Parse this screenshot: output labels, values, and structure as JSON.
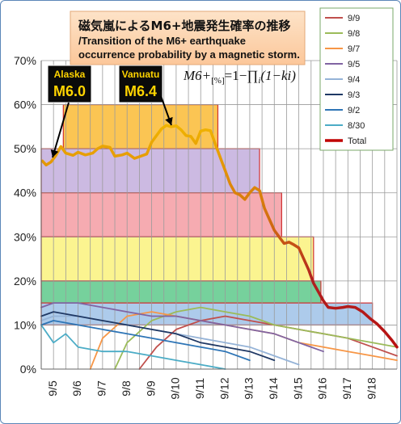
{
  "chart_data": {
    "type": "line",
    "title": "磁気嵐によるM6+地震発生確率の推移",
    "subtitle": "/Transition of the M6+ earthquake occurrence probability by a magnetic storm.",
    "formula": {
      "lhs": "M6+",
      "unit": "[%]",
      "rhs": "=1−∏",
      "sub": "i",
      "tail": "(1−ki)"
    },
    "ylim": [
      0,
      70
    ],
    "yticks": [
      "0%",
      "10%",
      "20%",
      "30%",
      "40%",
      "50%",
      "60%",
      "70%"
    ],
    "xlim": [
      4.5,
      19
    ],
    "xticks": [
      {
        "x": 5,
        "label": "9/5"
      },
      {
        "x": 6,
        "label": "9/6"
      },
      {
        "x": 7,
        "label": "9/7"
      },
      {
        "x": 8,
        "label": "9/8"
      },
      {
        "x": 9,
        "label": "9/9"
      },
      {
        "x": 10,
        "label": "9/10"
      },
      {
        "x": 11,
        "label": "9/11"
      },
      {
        "x": 12,
        "label": "9/12"
      },
      {
        "x": 13,
        "label": "9/13"
      },
      {
        "x": 14,
        "label": "9/14"
      },
      {
        "x": 15,
        "label": "9/15"
      },
      {
        "x": 16,
        "label": "9/16"
      },
      {
        "x": 17,
        "label": "9/17"
      },
      {
        "x": 18,
        "label": "9/18"
      }
    ],
    "grid": true,
    "legend_position": "top-right",
    "bands": [
      {
        "x0": 5.4,
        "x1": 11.7,
        "y0": 50,
        "y1": 60,
        "color": "#fbc24a"
      },
      {
        "x0": 4.5,
        "x1": 13.4,
        "y0": 40,
        "y1": 50,
        "color": "#c9b6e0"
      },
      {
        "x0": 4.5,
        "x1": 14.3,
        "y0": 30,
        "y1": 40,
        "color": "#f6a7ad"
      },
      {
        "x0": 4.5,
        "x1": 15.6,
        "y0": 20,
        "y1": 30,
        "color": "#fbf38a"
      },
      {
        "x0": 4.5,
        "x1": 15.9,
        "y0": 15,
        "y1": 20,
        "color": "#6fcf97"
      },
      {
        "x0": 4.5,
        "x1": 18.0,
        "y0": 10,
        "y1": 15,
        "color": "#a9c8ea"
      }
    ],
    "series": [
      {
        "name": "9/9",
        "color": "#c0504d",
        "x": [
          8.5,
          9.2,
          10,
          11,
          12,
          13,
          14,
          15,
          16,
          17,
          18,
          19
        ],
        "y": [
          0,
          5,
          9,
          11,
          12,
          11,
          10,
          9,
          8,
          7,
          5,
          3
        ]
      },
      {
        "name": "9/8",
        "color": "#9bbb59",
        "x": [
          7.5,
          8,
          9,
          10,
          11,
          12,
          13,
          14,
          15,
          16,
          17,
          18,
          19
        ],
        "y": [
          0,
          6,
          11,
          13,
          14,
          13,
          12,
          10,
          9,
          8,
          7,
          6,
          5
        ]
      },
      {
        "name": "9/7",
        "color": "#f79646",
        "x": [
          6.5,
          7,
          8,
          9,
          10,
          11,
          12,
          13,
          14,
          15,
          16,
          17,
          18,
          19
        ],
        "y": [
          0,
          7,
          12,
          13,
          12,
          11,
          10,
          9,
          8,
          6,
          5,
          4,
          3,
          2
        ]
      },
      {
        "name": "9/5",
        "color": "#8064a2",
        "x": [
          4.5,
          5,
          6,
          7,
          8,
          9,
          10,
          11,
          12,
          13,
          14,
          15,
          16
        ],
        "y": [
          14,
          15,
          15,
          14,
          13,
          12,
          12,
          11,
          10,
          9,
          8,
          6,
          4
        ]
      },
      {
        "name": "9/4",
        "color": "#95b3d7",
        "x": [
          4.5,
          5,
          6,
          7,
          8,
          9,
          10,
          11,
          12,
          13,
          14,
          15
        ],
        "y": [
          11,
          12,
          12,
          11,
          10,
          9,
          8,
          7,
          6,
          5,
          3,
          1
        ]
      },
      {
        "name": "9/3",
        "color": "#1f3864",
        "x": [
          4.5,
          5,
          6,
          7,
          8,
          9,
          10,
          11,
          12,
          13,
          14
        ],
        "y": [
          12,
          13,
          12,
          11,
          10,
          9,
          8,
          6,
          5,
          4,
          2
        ]
      },
      {
        "name": "9/2",
        "color": "#2e75b6",
        "x": [
          4.5,
          5,
          6,
          7,
          8,
          9,
          10,
          11,
          12,
          13
        ],
        "y": [
          10,
          11,
          10,
          9,
          8,
          7,
          6,
          5,
          4,
          2
        ]
      },
      {
        "name": "8/30",
        "color": "#4bacc6",
        "x": [
          4.5,
          5,
          5.5,
          6,
          7,
          8,
          9,
          10,
          11,
          12
        ],
        "y": [
          10,
          6,
          8,
          5,
          4,
          4,
          3,
          2,
          1,
          0
        ]
      },
      {
        "name": "Total",
        "color": "#c00000",
        "bold": true,
        "x": [
          4.55,
          4.7,
          4.9,
          5.1,
          5.3,
          5.5,
          5.8,
          6.0,
          6.3,
          6.6,
          6.8,
          7.0,
          7.3,
          7.5,
          7.8,
          8.0,
          8.3,
          8.5,
          8.8,
          9.0,
          9.2,
          9.4,
          9.6,
          9.8,
          10.0,
          10.2,
          10.4,
          10.6,
          10.8,
          11.0,
          11.2,
          11.4,
          11.6,
          11.8,
          12.0,
          12.2,
          12.4,
          12.6,
          12.8,
          13.0,
          13.2,
          13.4,
          13.6,
          13.8,
          14.0,
          14.2,
          14.4,
          14.6,
          14.8,
          15.0,
          15.2,
          15.4,
          15.6,
          15.8,
          16.0,
          16.2,
          16.5,
          16.8,
          17.0,
          17.3,
          17.6,
          17.9,
          18.2,
          18.5,
          18.8,
          19.0
        ],
        "y": [
          47.2,
          46.3,
          47.0,
          48.5,
          50.5,
          49.0,
          48.5,
          49.2,
          48.6,
          49.0,
          50.0,
          50.6,
          50.3,
          48.3,
          48.6,
          49.0,
          47.8,
          48.2,
          48.8,
          51.5,
          53.0,
          54.5,
          55.3,
          55.0,
          55.2,
          54.3,
          53.0,
          52.8,
          51.2,
          54.0,
          54.3,
          54.1,
          51.0,
          48.0,
          45.0,
          42.0,
          40.0,
          39.5,
          38.5,
          40.0,
          41.2,
          40.5,
          36.5,
          34.0,
          31.5,
          30.0,
          28.5,
          28.8,
          28.2,
          27.5,
          25.0,
          22.5,
          19.5,
          17.5,
          15.5,
          14.0,
          13.8,
          14.0,
          14.2,
          14.0,
          13.0,
          11.5,
          10.2,
          8.5,
          6.5,
          5.0
        ]
      }
    ],
    "annotations": [
      {
        "label": "Alaska",
        "value": "M6.0"
      },
      {
        "label": "Vanuatu",
        "value": "M6.4"
      }
    ]
  }
}
